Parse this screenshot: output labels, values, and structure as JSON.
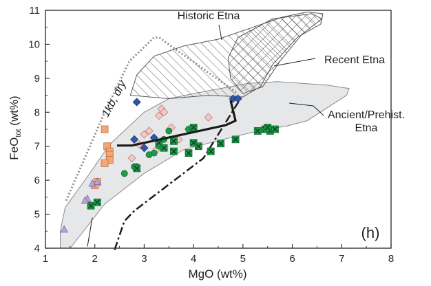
{
  "chart_data": {
    "type": "scatter",
    "panel_label": "(h)",
    "xlabel": "MgO (wt%)",
    "ylabel": {
      "main": "FeO",
      "sub": "tot",
      "tail": " (wt%)"
    },
    "xlim": [
      1,
      8
    ],
    "ylim": [
      4,
      11
    ],
    "xticks": [
      1,
      2,
      3,
      4,
      5,
      6,
      7,
      8
    ],
    "yticks": [
      4,
      5,
      6,
      7,
      8,
      9,
      10,
      11
    ],
    "grid": false,
    "annotations": {
      "historic": "Historic Etna",
      "recent": "Recent Etna",
      "ancient_line1": "Ancient/Prehist.",
      "ancient_line2": "Etna",
      "dry_curve": "1kb, dry"
    },
    "fields": {
      "ancient_prehist_etna": [
        [
          1.3,
          4
        ],
        [
          1.5,
          4
        ],
        [
          2.2,
          5.3
        ],
        [
          3,
          6.2
        ],
        [
          3.8,
          6.9
        ],
        [
          4.6,
          7.2
        ],
        [
          5.3,
          7.45
        ],
        [
          5.9,
          7.6
        ],
        [
          6.3,
          7.75
        ],
        [
          7.1,
          8.5
        ],
        [
          7.15,
          8.7
        ],
        [
          6.7,
          8.8
        ],
        [
          5.7,
          8.9
        ],
        [
          5.1,
          8.85
        ],
        [
          4,
          8.55
        ],
        [
          3.5,
          8.4
        ],
        [
          3,
          8
        ],
        [
          2.3,
          7.05
        ],
        [
          1.8,
          6
        ],
        [
          1.4,
          5.2
        ],
        [
          1.3,
          4.5
        ]
      ],
      "historic_etna": [
        [
          2.72,
          8.5
        ],
        [
          2.85,
          9.1
        ],
        [
          3.2,
          9.65
        ],
        [
          3.8,
          9.95
        ],
        [
          4.5,
          10.15
        ],
        [
          5.2,
          10.5
        ],
        [
          5.8,
          10.8
        ],
        [
          6.3,
          10.95
        ],
        [
          6.62,
          10.9
        ],
        [
          6.58,
          10.6
        ],
        [
          6.1,
          10.2
        ],
        [
          5.6,
          9.4
        ],
        [
          5.35,
          8.75
        ],
        [
          5,
          8.45
        ],
        [
          4.3,
          8.5
        ],
        [
          3.5,
          8.4
        ]
      ],
      "recent_etna": [
        [
          4.7,
          9.6
        ],
        [
          4.9,
          10.2
        ],
        [
          5.6,
          10.75
        ],
        [
          6.4,
          10.9
        ],
        [
          6.6,
          10.75
        ],
        [
          6.2,
          10.3
        ],
        [
          5.75,
          9.5
        ],
        [
          5.4,
          8.75
        ],
        [
          5.0,
          8.55
        ],
        [
          4.75,
          9.0
        ]
      ]
    },
    "curves": {
      "dry_1kb": [
        [
          1.42,
          5.4
        ],
        [
          2.2,
          8.0
        ],
        [
          2.7,
          9.5
        ],
        [
          3.2,
          10.2
        ],
        [
          3.3,
          10.2
        ],
        [
          4.9,
          8.55
        ]
      ],
      "dashdot": [
        [
          2.4,
          3.95
        ],
        [
          2.6,
          4.8
        ],
        [
          2.8,
          5.1
        ],
        [
          4.2,
          6.65
        ],
        [
          4.95,
          8.4
        ]
      ],
      "thick_trend": [
        [
          2.45,
          7.02
        ],
        [
          2.75,
          7.02
        ],
        [
          4.65,
          7.62
        ],
        [
          4.85,
          7.75
        ],
        [
          4.75,
          8.35
        ]
      ],
      "leader_line": [
        [
          1.85,
          4.05
        ],
        [
          1.95,
          4.9
        ]
      ]
    },
    "series": [
      {
        "marker": "square",
        "values": [
          [
            2.2,
            7.5
          ],
          [
            2.25,
            7.0
          ],
          [
            2.3,
            6.85
          ],
          [
            2.3,
            6.75
          ],
          [
            2.3,
            6.6
          ],
          [
            2.2,
            6.5
          ],
          [
            2.05,
            5.95
          ],
          [
            2.0,
            5.85
          ]
        ]
      },
      {
        "marker": "diamond",
        "values": [
          [
            2.85,
            8.3
          ],
          [
            2.8,
            7.2
          ],
          [
            3.0,
            6.95
          ],
          [
            3.2,
            7.25
          ],
          [
            4.8,
            8.4
          ],
          [
            4.9,
            8.4
          ]
        ]
      },
      {
        "marker": "diamond-open",
        "values": [
          [
            3.35,
            8.1
          ],
          [
            3.4,
            8.0
          ],
          [
            3.3,
            7.9
          ],
          [
            3.1,
            7.45
          ],
          [
            3.0,
            7.35
          ],
          [
            2.9,
            7.05
          ],
          [
            3.25,
            6.9
          ],
          [
            3.55,
            7.55
          ],
          [
            3.9,
            7.5
          ],
          [
            4.3,
            7.85
          ],
          [
            3.7,
            7.2
          ],
          [
            2.75,
            6.65
          ]
        ]
      },
      {
        "marker": "circle",
        "values": [
          [
            2.6,
            6.2
          ],
          [
            3.2,
            6.8
          ],
          [
            3.1,
            6.75
          ],
          [
            3.4,
            7.2
          ],
          [
            3.5,
            7.45
          ],
          [
            3.3,
            7.0
          ],
          [
            3.6,
            6.85
          ],
          [
            3.9,
            7.5
          ],
          [
            2.85,
            6.4
          ],
          [
            2.8,
            6.4
          ]
        ]
      },
      {
        "marker": "x-square",
        "values": [
          [
            2.85,
            6.35
          ],
          [
            3.3,
            7.1
          ],
          [
            3.4,
            6.95
          ],
          [
            3.6,
            7.15
          ],
          [
            3.6,
            6.85
          ],
          [
            3.9,
            6.8
          ],
          [
            4.0,
            7.1
          ],
          [
            4.1,
            7.0
          ],
          [
            4.35,
            6.85
          ],
          [
            4.55,
            7.08
          ],
          [
            4.85,
            7.2
          ],
          [
            5.3,
            7.45
          ],
          [
            5.45,
            7.5
          ],
          [
            5.55,
            7.45
          ],
          [
            5.65,
            7.5
          ],
          [
            5.5,
            7.55
          ],
          [
            4.0,
            7.55
          ],
          [
            1.92,
            5.25
          ],
          [
            2.05,
            5.35
          ]
        ]
      },
      {
        "marker": "triangle",
        "values": [
          [
            1.38,
            4.55
          ],
          [
            1.85,
            5.45
          ],
          [
            1.95,
            5.9
          ],
          [
            2.05,
            5.95
          ],
          [
            1.8,
            5.4
          ]
        ]
      }
    ],
    "colors": {
      "field_fill": "#e6e7e9",
      "field_stroke": "#8a8a8a",
      "orange": "#f2a77a",
      "orange_edge": "#c76d3a",
      "blue": "#2f57a5",
      "pink": "#f4c9c4",
      "pink_edge": "#b77e79",
      "green": "#1e9a4a",
      "green_dark": "#0f6e34",
      "purple": "#b9a6d6",
      "purple_edge": "#7a64a8",
      "dry_curve": "#8c8c8c",
      "black": "#1a1a1a"
    }
  }
}
